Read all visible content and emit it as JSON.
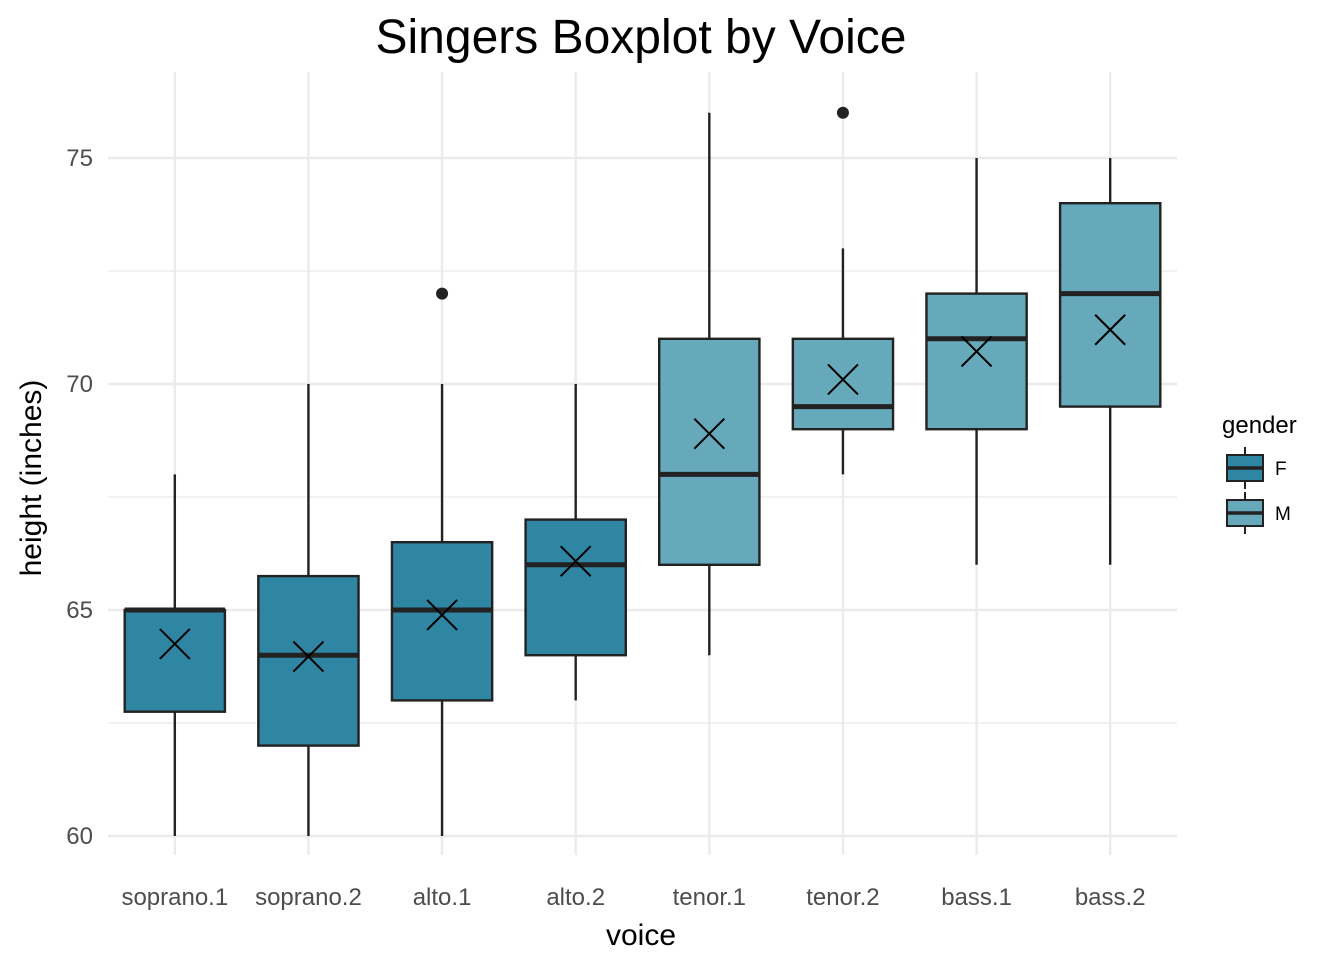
{
  "chart_data": {
    "type": "boxplot",
    "title": "Singers Boxplot by Voice",
    "xlabel": "voice",
    "ylabel": "height (inches)",
    "ylim": [
      59.5,
      76.8
    ],
    "yticks": [
      60,
      65,
      70,
      75
    ],
    "grid": true,
    "legend": {
      "title": "gender",
      "position": "right",
      "entries": [
        {
          "label": "F",
          "color": "#2e86a3"
        },
        {
          "label": "M",
          "color": "#66a9ba"
        }
      ]
    },
    "categories": [
      "soprano.1",
      "soprano.2",
      "alto.1",
      "alto.2",
      "tenor.1",
      "tenor.2",
      "bass.1",
      "bass.2"
    ],
    "boxes": [
      {
        "category": "soprano.1",
        "gender": "F",
        "whisker_low": 60,
        "q1": 62.75,
        "median": 65,
        "q3": 65,
        "whisker_high": 68,
        "mean": 64.25,
        "outliers": []
      },
      {
        "category": "soprano.2",
        "gender": "F",
        "whisker_low": 60,
        "q1": 62,
        "median": 64,
        "q3": 65.75,
        "whisker_high": 70,
        "mean": 63.97,
        "outliers": []
      },
      {
        "category": "alto.1",
        "gender": "F",
        "whisker_low": 60,
        "q1": 63,
        "median": 65,
        "q3": 66.5,
        "whisker_high": 70,
        "mean": 64.89,
        "outliers": [
          72
        ]
      },
      {
        "category": "alto.2",
        "gender": "F",
        "whisker_low": 63,
        "q1": 64,
        "median": 66,
        "q3": 67,
        "whisker_high": 70,
        "mean": 66.08,
        "outliers": []
      },
      {
        "category": "tenor.1",
        "gender": "M",
        "whisker_low": 64,
        "q1": 66,
        "median": 68,
        "q3": 71,
        "whisker_high": 76,
        "mean": 68.9,
        "outliers": []
      },
      {
        "category": "tenor.2",
        "gender": "M",
        "whisker_low": 68,
        "q1": 69,
        "median": 69.5,
        "q3": 71,
        "whisker_high": 73,
        "mean": 70.1,
        "outliers": [
          76
        ]
      },
      {
        "category": "bass.1",
        "gender": "M",
        "whisker_low": 66,
        "q1": 69,
        "median": 71,
        "q3": 72,
        "whisker_high": 75,
        "mean": 70.72,
        "outliers": []
      },
      {
        "category": "bass.2",
        "gender": "M",
        "whisker_low": 66,
        "q1": 69.5,
        "median": 72,
        "q3": 74,
        "whisker_high": 75,
        "mean": 71.2,
        "outliers": []
      }
    ],
    "colors": {
      "F": "#2e86a3",
      "M": "#66a9ba",
      "grid": "#ebebeb",
      "stroke": "#222222"
    }
  }
}
